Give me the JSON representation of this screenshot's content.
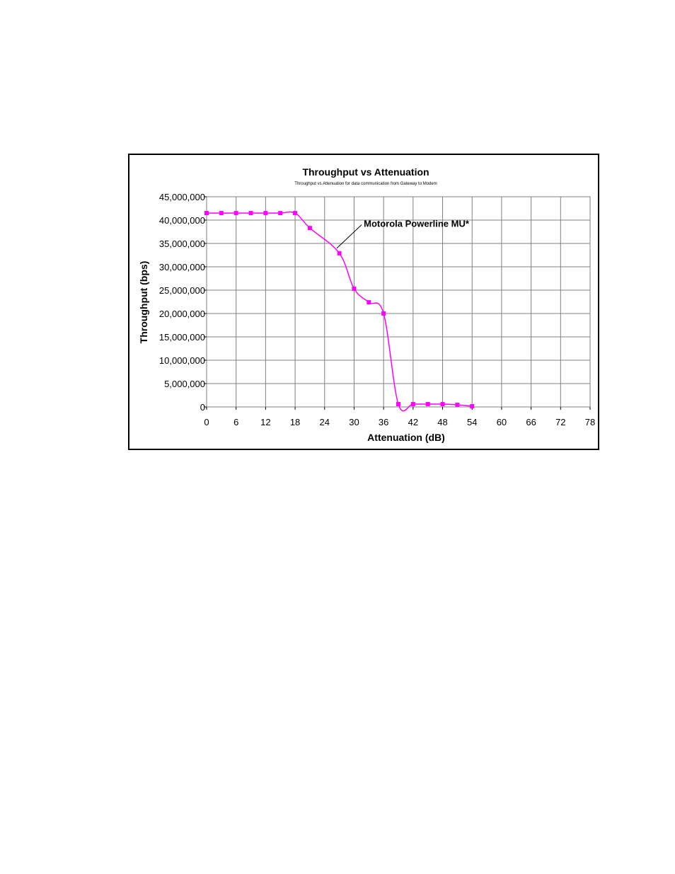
{
  "chart_data": {
    "type": "line",
    "title": "Throughput vs Attenuation",
    "subtitle": "Throughput vs Attenuation for data communication from Gateway to Modem",
    "xlabel": "Attenuation (dB)",
    "ylabel": "Throughput (bps)",
    "xlim": [
      0,
      78
    ],
    "ylim": [
      0,
      45000000
    ],
    "x_ticks": [
      "0",
      "6",
      "12",
      "18",
      "24",
      "30",
      "36",
      "42",
      "48",
      "54",
      "60",
      "66",
      "72",
      "78"
    ],
    "y_ticks": [
      "0",
      "5,000,000",
      "10,000,000",
      "15,000,000",
      "20,000,000",
      "25,000,000",
      "30,000,000",
      "35,000,000",
      "40,000,000",
      "45,000,000"
    ],
    "grid": true,
    "series": [
      {
        "name": "Motorola Powerline MU*",
        "color": "#ff00ff",
        "marker": "square",
        "x": [
          0,
          3,
          6,
          9,
          12,
          15,
          18,
          21,
          27,
          30,
          33,
          36,
          39,
          42,
          45,
          48,
          51,
          54
        ],
        "y": [
          41500000,
          41500000,
          41500000,
          41500000,
          41500000,
          41500000,
          41500000,
          38300000,
          32900000,
          25300000,
          22400000,
          20000000,
          600000,
          600000,
          600000,
          600000,
          450000,
          150000
        ]
      }
    ],
    "annotation": {
      "text": "Motorola Powerline MU*",
      "points_to_x": 26.5,
      "points_to_y": 34000000
    }
  }
}
